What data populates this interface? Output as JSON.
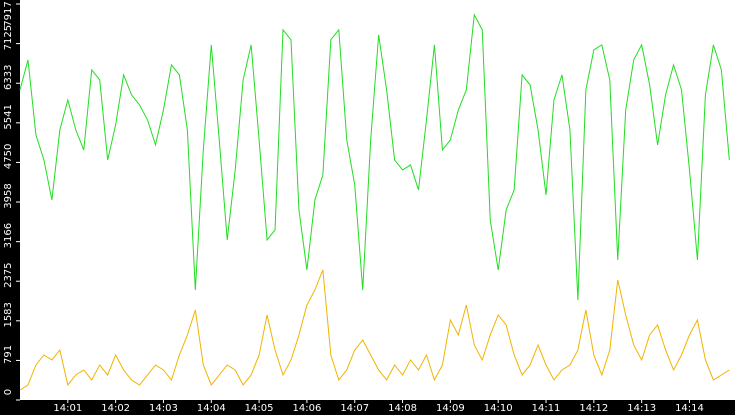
{
  "chart_data": {
    "type": "line",
    "categories": [
      null,
      null,
      null,
      null,
      null,
      null,
      "14:01",
      null,
      null,
      null,
      null,
      null,
      "14:02",
      null,
      null,
      null,
      null,
      null,
      "14:03",
      null,
      null,
      null,
      null,
      null,
      "14:04",
      null,
      null,
      null,
      null,
      null,
      "14:05",
      null,
      null,
      null,
      null,
      null,
      "14:06",
      null,
      null,
      null,
      null,
      null,
      "14:07",
      null,
      null,
      null,
      null,
      null,
      "14:08",
      null,
      null,
      null,
      null,
      null,
      "14:09",
      null,
      null,
      null,
      null,
      null,
      "14:10",
      null,
      null,
      null,
      null,
      null,
      "14:11",
      null,
      null,
      null,
      null,
      null,
      "14:12",
      null,
      null,
      null,
      null,
      null,
      "14:13",
      null,
      null,
      null,
      null,
      null,
      "14:14",
      null,
      null,
      null,
      null,
      null
    ],
    "series": [
      {
        "color": "#22dd22",
        "values": [
          6200,
          6800,
          5300,
          4800,
          4000,
          5400,
          6000,
          5400,
          5000,
          6600,
          6400,
          4800,
          5500,
          6500,
          6100,
          5900,
          5600,
          5100,
          5800,
          6700,
          6500,
          5400,
          2200,
          5000,
          7100,
          5200,
          3200,
          4600,
          6400,
          7100,
          5200,
          3200,
          3400,
          7400,
          7200,
          3800,
          2600,
          4000,
          4500,
          7200,
          7400,
          5200,
          4300,
          2200,
          5200,
          7300,
          6200,
          4800,
          4600,
          4700,
          4200,
          5600,
          7100,
          5000,
          5200,
          5800,
          6200,
          7700,
          7400,
          3600,
          2600,
          3800,
          4200,
          6500,
          6300,
          5400,
          4100,
          6000,
          6500,
          5400,
          2000,
          6200,
          7000,
          7100,
          6400,
          2800,
          5800,
          6800,
          7100,
          6300,
          5100,
          6100,
          6700,
          6200,
          4600,
          2800,
          6100,
          7100,
          6600,
          4800
        ]
      },
      {
        "color": "#f0b400",
        "values": [
          200,
          300,
          700,
          900,
          800,
          1000,
          300,
          500,
          600,
          400,
          700,
          500,
          900,
          600,
          400,
          300,
          500,
          700,
          600,
          400,
          900,
          1300,
          1800,
          700,
          300,
          500,
          700,
          600,
          300,
          500,
          900,
          1700,
          1000,
          500,
          800,
          1300,
          1900,
          2200,
          2600,
          900,
          400,
          600,
          1000,
          1200,
          900,
          600,
          400,
          700,
          500,
          800,
          600,
          900,
          400,
          700,
          1600,
          1300,
          1900,
          1100,
          800,
          1300,
          1700,
          1500,
          900,
          500,
          700,
          1100,
          700,
          400,
          600,
          700,
          1000,
          1800,
          900,
          500,
          1000,
          2400,
          1700,
          1100,
          800,
          1300,
          1500,
          1000,
          600,
          900,
          1300,
          1600,
          800,
          400,
          500,
          600
        ]
      }
    ],
    "ylim": [
      0,
      7917
    ],
    "yticks": [
      0,
      791,
      1583,
      2375,
      3166,
      3958,
      4750,
      5541,
      6333,
      7125,
      7917
    ]
  }
}
